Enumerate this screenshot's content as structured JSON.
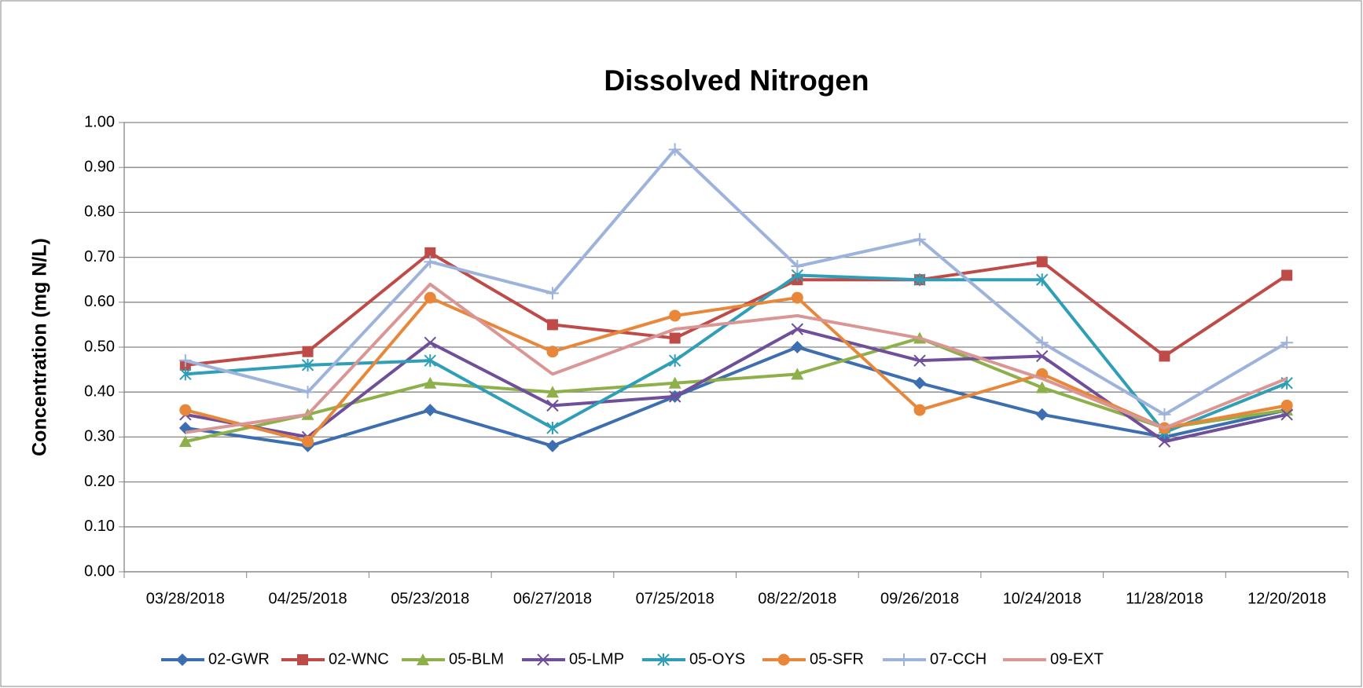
{
  "chart_data": {
    "type": "line",
    "title": "Dissolved Nitrogen",
    "y_label": "Concentration (mg N/L)",
    "categories": [
      "03/28/2018",
      "04/25/2018",
      "05/23/2018",
      "06/27/2018",
      "07/25/2018",
      "08/22/2018",
      "09/26/2018",
      "10/24/2018",
      "11/28/2018",
      "12/20/2018"
    ],
    "series": [
      {
        "name": "02-GWR",
        "color": "#3d6fb0",
        "marker": "diamond",
        "values": [
          0.32,
          0.28,
          0.36,
          0.28,
          0.39,
          0.5,
          0.42,
          0.35,
          0.3,
          0.36
        ]
      },
      {
        "name": "02-WNC",
        "color": "#be4b48",
        "marker": "square",
        "values": [
          0.46,
          0.49,
          0.71,
          0.55,
          0.52,
          0.65,
          0.65,
          0.69,
          0.48,
          0.66
        ]
      },
      {
        "name": "05-BLM",
        "color": "#8eb04a",
        "marker": "triangle",
        "values": [
          0.29,
          0.35,
          0.42,
          0.4,
          0.42,
          0.44,
          0.52,
          0.41,
          0.32,
          0.36
        ]
      },
      {
        "name": "05-LMP",
        "color": "#6f4f9a",
        "marker": "x",
        "values": [
          0.35,
          0.3,
          0.51,
          0.37,
          0.39,
          0.54,
          0.47,
          0.48,
          0.29,
          0.35
        ]
      },
      {
        "name": "05-OYS",
        "color": "#2f9fb8",
        "marker": "star",
        "values": [
          0.44,
          0.46,
          0.47,
          0.32,
          0.47,
          0.66,
          0.65,
          0.65,
          0.31,
          0.42
        ]
      },
      {
        "name": "05-SFR",
        "color": "#e8873a",
        "marker": "circle",
        "values": [
          0.36,
          0.29,
          0.61,
          0.49,
          0.57,
          0.61,
          0.36,
          0.44,
          0.32,
          0.37
        ]
      },
      {
        "name": "07-CCH",
        "color": "#9db3dc",
        "marker": "plus",
        "values": [
          0.47,
          0.4,
          0.69,
          0.62,
          0.94,
          0.68,
          0.74,
          0.51,
          0.35,
          0.51
        ]
      },
      {
        "name": "09-EXT",
        "color": "#d99694",
        "marker": "none",
        "values": [
          0.31,
          0.35,
          0.64,
          0.44,
          0.54,
          0.57,
          0.52,
          0.43,
          0.32,
          0.43
        ]
      }
    ],
    "ylim": [
      0,
      1
    ],
    "yticks": [
      {
        "value": 0,
        "label": "0.00"
      },
      {
        "value": 0.1,
        "label": "0.10"
      },
      {
        "value": 0.2,
        "label": "0.20"
      },
      {
        "value": 0.3,
        "label": "0.30"
      },
      {
        "value": 0.4,
        "label": "0.40"
      },
      {
        "value": 0.5,
        "label": "0.50"
      },
      {
        "value": 0.6,
        "label": "0.60"
      },
      {
        "value": 0.7,
        "label": "0.70"
      },
      {
        "value": 0.8,
        "label": "0.80"
      },
      {
        "value": 0.9,
        "label": "0.90"
      },
      {
        "value": 1,
        "label": "1.00"
      }
    ],
    "grid": true,
    "legend": "bottom"
  }
}
